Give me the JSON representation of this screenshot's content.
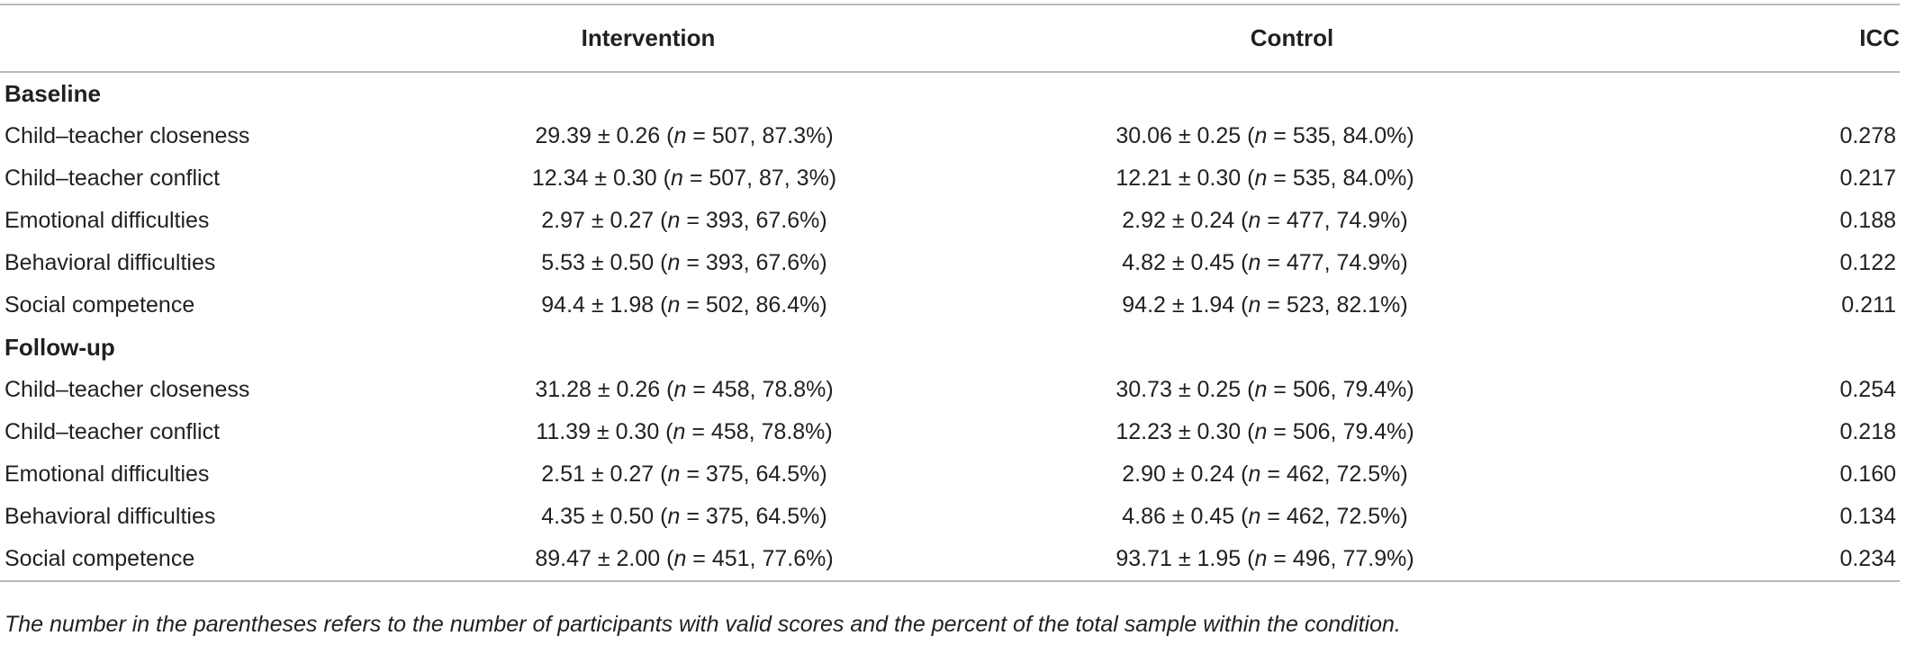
{
  "table": {
    "headers": {
      "label": "",
      "intervention": "Intervention",
      "control": "Control",
      "icc": "ICC"
    },
    "sections": [
      {
        "title": "Baseline",
        "rows": [
          {
            "label": "Child–teacher closeness",
            "intervention": {
              "stat": "29.39 ± 0.26 (",
              "n_sym": "n",
              "rest": " = 507, 87.3%)"
            },
            "control": {
              "stat": "30.06 ± 0.25 (",
              "n_sym": "n",
              "rest": " = 535, 84.0%)"
            },
            "icc": "0.278"
          },
          {
            "label": "Child–teacher conflict",
            "intervention": {
              "stat": "12.34 ± 0.30 (",
              "n_sym": "n",
              "rest": " = 507, 87, 3%)"
            },
            "control": {
              "stat": "12.21 ± 0.30 (",
              "n_sym": "n",
              "rest": " = 535, 84.0%)"
            },
            "icc": "0.217"
          },
          {
            "label": "Emotional difficulties",
            "intervention": {
              "stat": "2.97 ± 0.27 (",
              "n_sym": "n",
              "rest": " = 393, 67.6%)"
            },
            "control": {
              "stat": "2.92 ± 0.24 (",
              "n_sym": "n",
              "rest": " = 477, 74.9%)"
            },
            "icc": "0.188"
          },
          {
            "label": "Behavioral difficulties",
            "intervention": {
              "stat": "5.53 ± 0.50 (",
              "n_sym": "n",
              "rest": " = 393, 67.6%)"
            },
            "control": {
              "stat": "4.82 ± 0.45 (",
              "n_sym": "n",
              "rest": " = 477, 74.9%)"
            },
            "icc": "0.122"
          },
          {
            "label": "Social competence",
            "intervention": {
              "stat": "94.4 ± 1.98 (",
              "n_sym": "n",
              "rest": " = 502, 86.4%)"
            },
            "control": {
              "stat": "94.2 ± 1.94 (",
              "n_sym": "n",
              "rest": " = 523, 82.1%)"
            },
            "icc": "0.211"
          }
        ]
      },
      {
        "title": "Follow-up",
        "rows": [
          {
            "label": "Child–teacher closeness",
            "intervention": {
              "stat": "31.28 ± 0.26 (",
              "n_sym": "n",
              "rest": " = 458, 78.8%)"
            },
            "control": {
              "stat": "30.73 ± 0.25 (",
              "n_sym": "n",
              "rest": " = 506, 79.4%)"
            },
            "icc": "0.254"
          },
          {
            "label": "Child–teacher conflict",
            "intervention": {
              "stat": "11.39 ± 0.30 (",
              "n_sym": "n",
              "rest": " = 458, 78.8%)"
            },
            "control": {
              "stat": "12.23 ± 0.30 (",
              "n_sym": "n",
              "rest": " = 506, 79.4%)"
            },
            "icc": "0.218"
          },
          {
            "label": "Emotional difficulties",
            "intervention": {
              "stat": "2.51 ± 0.27 (",
              "n_sym": "n",
              "rest": " = 375, 64.5%)"
            },
            "control": {
              "stat": "2.90 ± 0.24 (",
              "n_sym": "n",
              "rest": " = 462, 72.5%)"
            },
            "icc": "0.160"
          },
          {
            "label": "Behavioral difficulties",
            "intervention": {
              "stat": "4.35 ± 0.50 (",
              "n_sym": "n",
              "rest": " = 375, 64.5%)"
            },
            "control": {
              "stat": "4.86 ± 0.45 (",
              "n_sym": "n",
              "rest": " = 462, 72.5%)"
            },
            "icc": "0.134"
          },
          {
            "label": "Social competence",
            "intervention": {
              "stat": "89.47 ± 2.00 (",
              "n_sym": "n",
              "rest": " = 451, 77.6%)"
            },
            "control": {
              "stat": "93.71 ± 1.95 (",
              "n_sym": "n",
              "rest": " = 496, 77.9%)"
            },
            "icc": "0.234"
          }
        ]
      }
    ],
    "footnote": "The number in the parentheses refers to the number of participants with valid scores and the percent of the total sample within the condition."
  }
}
